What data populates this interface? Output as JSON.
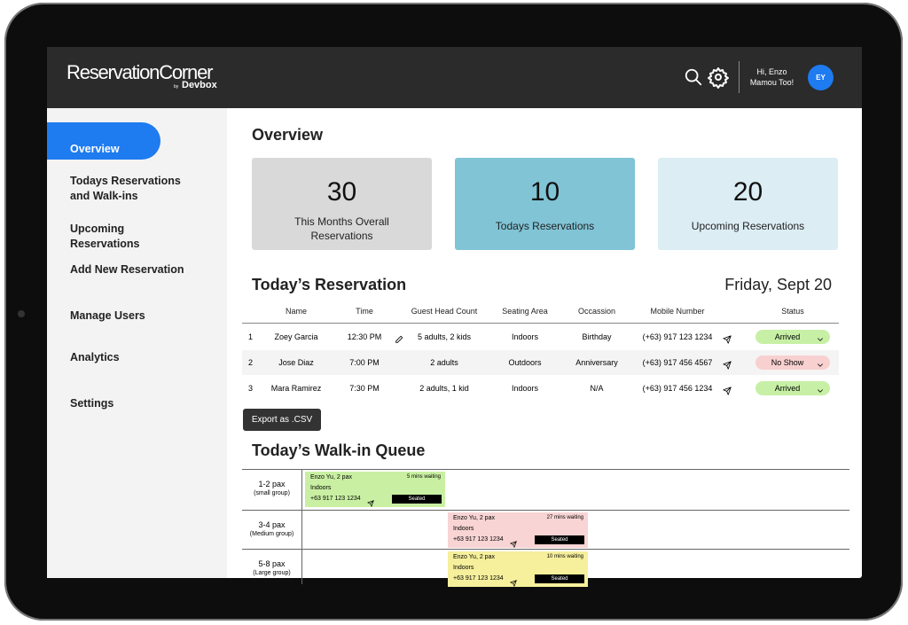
{
  "header": {
    "brand": "ReservationCorner",
    "brand_by": "by",
    "brand_sub": "Devbox",
    "greeting": "Hi, Enzo",
    "greeting_sub": "Mamou Too!",
    "avatar": "EY"
  },
  "sidebar": {
    "items": [
      "Overview",
      "Todays Reservations and Walk-ins",
      "Upcoming Reservations",
      "Add New Reservation",
      "Manage Users",
      "Analytics",
      "Settings"
    ]
  },
  "overview": {
    "title": "Overview",
    "cards": [
      {
        "value": 30,
        "label": "This Months Overall Reservations",
        "color": "#d9d9d9"
      },
      {
        "value": 10,
        "label": "Todays Reservations",
        "color": "#80c4d6"
      },
      {
        "value": 20,
        "label": "Upcoming Reservations",
        "color": "#dcedf4"
      }
    ]
  },
  "reservations": {
    "title": "Today’s Reservation",
    "date": "Friday, Sept 20",
    "columns": [
      "Name",
      "Time",
      "Guest Head Count",
      "Seating Area",
      "Occassion",
      "Mobile Number",
      "Status"
    ],
    "rows": [
      [
        1,
        "Zoey Garcia",
        "12:30 PM",
        "5 adults, 2 kids",
        "Indoors",
        "Birthday",
        "(+63) 917 123 1234",
        "Arrived"
      ],
      [
        2,
        "Jose Diaz",
        "7:00 PM",
        "2 adults",
        "Outdoors",
        "Anniversary",
        "(+63) 917 456 4567",
        "No Show"
      ],
      [
        3,
        "Mara Ramirez",
        "7:30 PM",
        "2 adults, 1 kid",
        "Indoors",
        "N/A",
        "(+63) 917 456 1234",
        "Arrived"
      ]
    ],
    "status_colors": [
      "#c7f0a6",
      "#f8d0d0",
      "#c7f0a6"
    ],
    "export": "Export as .CSV"
  },
  "walkin": {
    "title": "Today’s Walk-in Queue",
    "groups": [
      {
        "label": "1-2 pax",
        "sub": "(small group)",
        "entries": [
          {
            "name": "Enzo Yu, 2 pax",
            "waiting": "5 mins waiting",
            "area": "Indoors",
            "phone": "+63 917 123 1234",
            "status": "Seated",
            "color": "#c9f0a2"
          }
        ]
      },
      {
        "label": "3-4 pax",
        "sub": "(Medium group)",
        "entries": [
          {
            "name": "Enzo Yu, 2 pax",
            "waiting": "27 mins waiting",
            "area": "Indoors",
            "phone": "+63 917 123 1234",
            "status": "Seated",
            "color": "#f8d4d4"
          }
        ]
      },
      {
        "label": "5-8 pax",
        "sub": "(Large group)",
        "entries": [
          {
            "name": "Enzo Yu, 2 pax",
            "waiting": "10 mins waiting",
            "area": "Indoors",
            "phone": "+63 917 123 1234",
            "status": "Seated",
            "color": "#f6ef9c"
          }
        ]
      }
    ]
  }
}
